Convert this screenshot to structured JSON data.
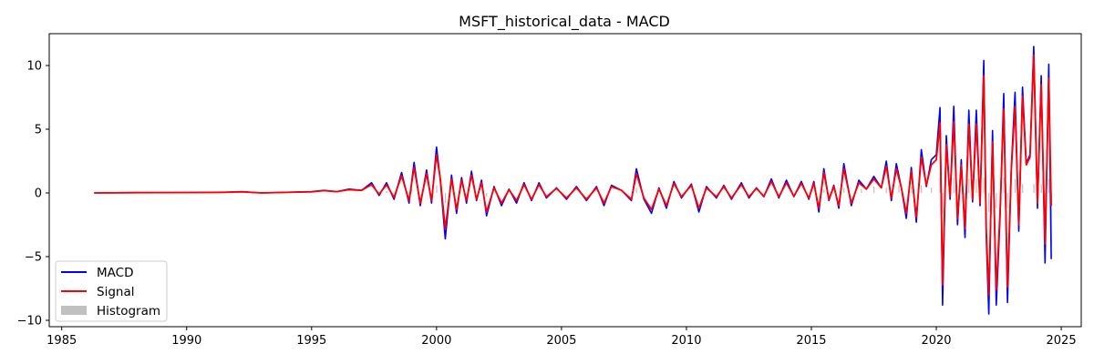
{
  "chart_data": {
    "type": "line",
    "title": "MSFT_historical_data - MACD",
    "xlabel": "",
    "ylabel": "",
    "xlim": [
      1984.5,
      2025.8
    ],
    "ylim": [
      -10.5,
      12.5
    ],
    "x_ticks": [
      1985,
      1990,
      1995,
      2000,
      2005,
      2010,
      2015,
      2020,
      2025
    ],
    "y_ticks": [
      -10,
      -5,
      0,
      5,
      10
    ],
    "grid": false,
    "legend": {
      "placement": "lower-left",
      "entries": [
        "MACD",
        "Signal",
        "Histogram"
      ]
    },
    "series": [
      {
        "name": "MACD",
        "kind": "line",
        "color": "#0000ff",
        "points": [
          [
            1986.3,
            0.0
          ],
          [
            1988.0,
            0.02
          ],
          [
            1990.0,
            0.03
          ],
          [
            1991.5,
            0.05
          ],
          [
            1992.2,
            0.1
          ],
          [
            1993.0,
            0.0
          ],
          [
            1994.0,
            0.05
          ],
          [
            1995.0,
            0.1
          ],
          [
            1995.5,
            0.2
          ],
          [
            1996.0,
            0.1
          ],
          [
            1996.5,
            0.3
          ],
          [
            1997.0,
            0.2
          ],
          [
            1997.4,
            0.8
          ],
          [
            1997.7,
            -0.2
          ],
          [
            1998.0,
            0.8
          ],
          [
            1998.3,
            -0.5
          ],
          [
            1998.6,
            1.6
          ],
          [
            1998.9,
            -0.8
          ],
          [
            1999.1,
            2.4
          ],
          [
            1999.35,
            -1.0
          ],
          [
            1999.6,
            1.8
          ],
          [
            1999.8,
            -0.8
          ],
          [
            2000.0,
            3.6
          ],
          [
            2000.15,
            1.0
          ],
          [
            2000.35,
            -3.6
          ],
          [
            2000.6,
            1.4
          ],
          [
            2000.8,
            -1.6
          ],
          [
            2001.0,
            1.2
          ],
          [
            2001.2,
            -0.8
          ],
          [
            2001.4,
            1.7
          ],
          [
            2001.6,
            -0.6
          ],
          [
            2001.8,
            1.0
          ],
          [
            2002.0,
            -1.8
          ],
          [
            2002.3,
            0.5
          ],
          [
            2002.6,
            -1.0
          ],
          [
            2002.9,
            0.3
          ],
          [
            2003.2,
            -0.8
          ],
          [
            2003.5,
            0.8
          ],
          [
            2003.8,
            -0.6
          ],
          [
            2004.1,
            0.8
          ],
          [
            2004.4,
            -0.4
          ],
          [
            2004.8,
            0.4
          ],
          [
            2005.2,
            -0.5
          ],
          [
            2005.6,
            0.5
          ],
          [
            2006.0,
            -0.6
          ],
          [
            2006.4,
            0.5
          ],
          [
            2006.7,
            -1.0
          ],
          [
            2007.0,
            0.6
          ],
          [
            2007.4,
            0.2
          ],
          [
            2007.8,
            -0.6
          ],
          [
            2008.0,
            1.9
          ],
          [
            2008.3,
            -0.5
          ],
          [
            2008.6,
            -1.6
          ],
          [
            2008.9,
            0.4
          ],
          [
            2009.2,
            -1.2
          ],
          [
            2009.5,
            0.9
          ],
          [
            2009.8,
            -0.4
          ],
          [
            2010.2,
            0.7
          ],
          [
            2010.5,
            -1.5
          ],
          [
            2010.8,
            0.5
          ],
          [
            2011.2,
            -0.4
          ],
          [
            2011.5,
            0.6
          ],
          [
            2011.8,
            -0.5
          ],
          [
            2012.2,
            0.8
          ],
          [
            2012.5,
            -0.4
          ],
          [
            2012.8,
            0.4
          ],
          [
            2013.1,
            -0.3
          ],
          [
            2013.4,
            1.1
          ],
          [
            2013.7,
            -0.4
          ],
          [
            2014.0,
            1.0
          ],
          [
            2014.3,
            -0.3
          ],
          [
            2014.6,
            0.9
          ],
          [
            2014.9,
            -0.5
          ],
          [
            2015.1,
            0.9
          ],
          [
            2015.3,
            -1.5
          ],
          [
            2015.5,
            1.9
          ],
          [
            2015.7,
            -0.6
          ],
          [
            2015.9,
            0.6
          ],
          [
            2016.1,
            -1.2
          ],
          [
            2016.3,
            2.3
          ],
          [
            2016.6,
            -1.0
          ],
          [
            2016.9,
            1.0
          ],
          [
            2017.2,
            0.3
          ],
          [
            2017.5,
            1.3
          ],
          [
            2017.8,
            0.4
          ],
          [
            2018.0,
            2.5
          ],
          [
            2018.2,
            -0.6
          ],
          [
            2018.4,
            2.3
          ],
          [
            2018.6,
            0.4
          ],
          [
            2018.8,
            -2.0
          ],
          [
            2019.0,
            2.0
          ],
          [
            2019.2,
            -2.3
          ],
          [
            2019.4,
            3.4
          ],
          [
            2019.6,
            0.5
          ],
          [
            2019.8,
            2.6
          ],
          [
            2020.0,
            3.0
          ],
          [
            2020.15,
            6.7
          ],
          [
            2020.25,
            -8.8
          ],
          [
            2020.4,
            4.5
          ],
          [
            2020.55,
            -0.5
          ],
          [
            2020.7,
            6.8
          ],
          [
            2020.85,
            -2.5
          ],
          [
            2021.0,
            2.6
          ],
          [
            2021.15,
            -3.5
          ],
          [
            2021.3,
            6.5
          ],
          [
            2021.45,
            -0.7
          ],
          [
            2021.6,
            6.5
          ],
          [
            2021.75,
            -1.0
          ],
          [
            2021.9,
            10.4
          ],
          [
            2022.0,
            -3.4
          ],
          [
            2022.1,
            -9.5
          ],
          [
            2022.25,
            4.9
          ],
          [
            2022.4,
            -8.8
          ],
          [
            2022.55,
            -2.0
          ],
          [
            2022.7,
            7.8
          ],
          [
            2022.85,
            -8.6
          ],
          [
            2023.0,
            2.0
          ],
          [
            2023.15,
            7.9
          ],
          [
            2023.3,
            -3.0
          ],
          [
            2023.45,
            8.3
          ],
          [
            2023.6,
            2.3
          ],
          [
            2023.75,
            3.0
          ],
          [
            2023.9,
            11.5
          ],
          [
            2024.05,
            -1.2
          ],
          [
            2024.2,
            9.2
          ],
          [
            2024.35,
            -5.5
          ],
          [
            2024.5,
            10.1
          ],
          [
            2024.6,
            -5.2
          ]
        ]
      },
      {
        "name": "Signal",
        "kind": "line",
        "color": "#ff0000",
        "points": [
          [
            1986.3,
            0.0
          ],
          [
            1988.0,
            0.02
          ],
          [
            1990.0,
            0.03
          ],
          [
            1991.5,
            0.05
          ],
          [
            1992.2,
            0.08
          ],
          [
            1993.0,
            0.0
          ],
          [
            1994.0,
            0.04
          ],
          [
            1995.0,
            0.08
          ],
          [
            1995.5,
            0.18
          ],
          [
            1996.0,
            0.1
          ],
          [
            1996.5,
            0.25
          ],
          [
            1997.0,
            0.2
          ],
          [
            1997.4,
            0.65
          ],
          [
            1997.7,
            -0.1
          ],
          [
            1998.0,
            0.65
          ],
          [
            1998.3,
            -0.35
          ],
          [
            1998.6,
            1.35
          ],
          [
            1998.9,
            -0.6
          ],
          [
            1999.1,
            2.0
          ],
          [
            1999.35,
            -0.8
          ],
          [
            1999.6,
            1.5
          ],
          [
            1999.8,
            -0.6
          ],
          [
            2000.0,
            3.0
          ],
          [
            2000.15,
            1.1
          ],
          [
            2000.35,
            -2.8
          ],
          [
            2000.6,
            1.1
          ],
          [
            2000.8,
            -1.3
          ],
          [
            2001.0,
            1.0
          ],
          [
            2001.2,
            -0.6
          ],
          [
            2001.4,
            1.4
          ],
          [
            2001.6,
            -0.5
          ],
          [
            2001.8,
            0.8
          ],
          [
            2002.0,
            -1.5
          ],
          [
            2002.3,
            0.4
          ],
          [
            2002.6,
            -0.8
          ],
          [
            2002.9,
            0.25
          ],
          [
            2003.2,
            -0.6
          ],
          [
            2003.5,
            0.65
          ],
          [
            2003.8,
            -0.5
          ],
          [
            2004.1,
            0.65
          ],
          [
            2004.4,
            -0.3
          ],
          [
            2004.8,
            0.35
          ],
          [
            2005.2,
            -0.4
          ],
          [
            2005.6,
            0.4
          ],
          [
            2006.0,
            -0.5
          ],
          [
            2006.4,
            0.4
          ],
          [
            2006.7,
            -0.8
          ],
          [
            2007.0,
            0.5
          ],
          [
            2007.4,
            0.2
          ],
          [
            2007.8,
            -0.5
          ],
          [
            2008.0,
            1.5
          ],
          [
            2008.3,
            -0.4
          ],
          [
            2008.6,
            -1.3
          ],
          [
            2008.9,
            0.3
          ],
          [
            2009.2,
            -1.0
          ],
          [
            2009.5,
            0.75
          ],
          [
            2009.8,
            -0.3
          ],
          [
            2010.2,
            0.6
          ],
          [
            2010.5,
            -1.2
          ],
          [
            2010.8,
            0.4
          ],
          [
            2011.2,
            -0.3
          ],
          [
            2011.5,
            0.5
          ],
          [
            2011.8,
            -0.4
          ],
          [
            2012.2,
            0.65
          ],
          [
            2012.5,
            -0.3
          ],
          [
            2012.8,
            0.35
          ],
          [
            2013.1,
            -0.25
          ],
          [
            2013.4,
            0.9
          ],
          [
            2013.7,
            -0.3
          ],
          [
            2014.0,
            0.8
          ],
          [
            2014.3,
            -0.25
          ],
          [
            2014.6,
            0.75
          ],
          [
            2014.9,
            -0.4
          ],
          [
            2015.1,
            0.75
          ],
          [
            2015.3,
            -1.2
          ],
          [
            2015.5,
            1.6
          ],
          [
            2015.7,
            -0.5
          ],
          [
            2015.9,
            0.5
          ],
          [
            2016.1,
            -1.0
          ],
          [
            2016.3,
            1.9
          ],
          [
            2016.6,
            -0.8
          ],
          [
            2016.9,
            0.8
          ],
          [
            2017.2,
            0.3
          ],
          [
            2017.5,
            1.1
          ],
          [
            2017.8,
            0.4
          ],
          [
            2018.0,
            2.1
          ],
          [
            2018.2,
            -0.4
          ],
          [
            2018.4,
            1.9
          ],
          [
            2018.6,
            0.4
          ],
          [
            2018.8,
            -1.6
          ],
          [
            2019.0,
            1.7
          ],
          [
            2019.2,
            -1.9
          ],
          [
            2019.4,
            2.8
          ],
          [
            2019.6,
            0.6
          ],
          [
            2019.8,
            2.2
          ],
          [
            2020.0,
            2.6
          ],
          [
            2020.15,
            5.5
          ],
          [
            2020.25,
            -7.2
          ],
          [
            2020.4,
            3.8
          ],
          [
            2020.55,
            -0.3
          ],
          [
            2020.7,
            5.6
          ],
          [
            2020.85,
            -2.0
          ],
          [
            2021.0,
            2.2
          ],
          [
            2021.15,
            -2.8
          ],
          [
            2021.3,
            5.4
          ],
          [
            2021.45,
            -0.5
          ],
          [
            2021.6,
            5.4
          ],
          [
            2021.75,
            -0.8
          ],
          [
            2021.9,
            9.2
          ],
          [
            2022.0,
            -2.8
          ],
          [
            2022.1,
            -8.0
          ],
          [
            2022.25,
            4.0
          ],
          [
            2022.4,
            -7.6
          ],
          [
            2022.55,
            -1.6
          ],
          [
            2022.7,
            6.6
          ],
          [
            2022.85,
            -7.4
          ],
          [
            2023.0,
            1.8
          ],
          [
            2023.15,
            6.8
          ],
          [
            2023.3,
            -2.5
          ],
          [
            2023.45,
            7.6
          ],
          [
            2023.6,
            2.2
          ],
          [
            2023.75,
            2.8
          ],
          [
            2023.9,
            10.8
          ],
          [
            2024.05,
            -0.8
          ],
          [
            2024.2,
            8.5
          ],
          [
            2024.35,
            -4.0
          ],
          [
            2024.5,
            9.0
          ],
          [
            2024.6,
            -1.0
          ]
        ]
      },
      {
        "name": "Histogram",
        "kind": "bar",
        "color": "#c0c0c0",
        "points": [
          [
            1998.0,
            0.15
          ],
          [
            1999.0,
            0.4
          ],
          [
            2000.0,
            0.6
          ],
          [
            2000.35,
            -0.8
          ],
          [
            2002.0,
            -0.3
          ],
          [
            2008.0,
            0.4
          ],
          [
            2012.0,
            0.15
          ],
          [
            2015.5,
            0.3
          ],
          [
            2016.3,
            0.4
          ],
          [
            2017.0,
            0.3
          ],
          [
            2017.5,
            0.5
          ],
          [
            2018.0,
            0.4
          ],
          [
            2018.5,
            0.6
          ],
          [
            2019.0,
            0.5
          ],
          [
            2019.4,
            0.6
          ],
          [
            2019.8,
            0.4
          ],
          [
            2020.15,
            1.2
          ],
          [
            2020.25,
            -1.6
          ],
          [
            2020.7,
            1.2
          ],
          [
            2021.15,
            -0.7
          ],
          [
            2021.3,
            1.1
          ],
          [
            2021.6,
            1.1
          ],
          [
            2021.9,
            1.2
          ],
          [
            2022.1,
            -1.5
          ],
          [
            2022.4,
            -1.2
          ],
          [
            2022.7,
            1.2
          ],
          [
            2022.85,
            -1.2
          ],
          [
            2023.15,
            1.1
          ],
          [
            2023.45,
            0.7
          ],
          [
            2023.9,
            0.7
          ],
          [
            2024.2,
            0.7
          ],
          [
            2024.35,
            -1.5
          ],
          [
            2024.5,
            1.1
          ],
          [
            2024.6,
            -4.2
          ]
        ]
      }
    ]
  }
}
